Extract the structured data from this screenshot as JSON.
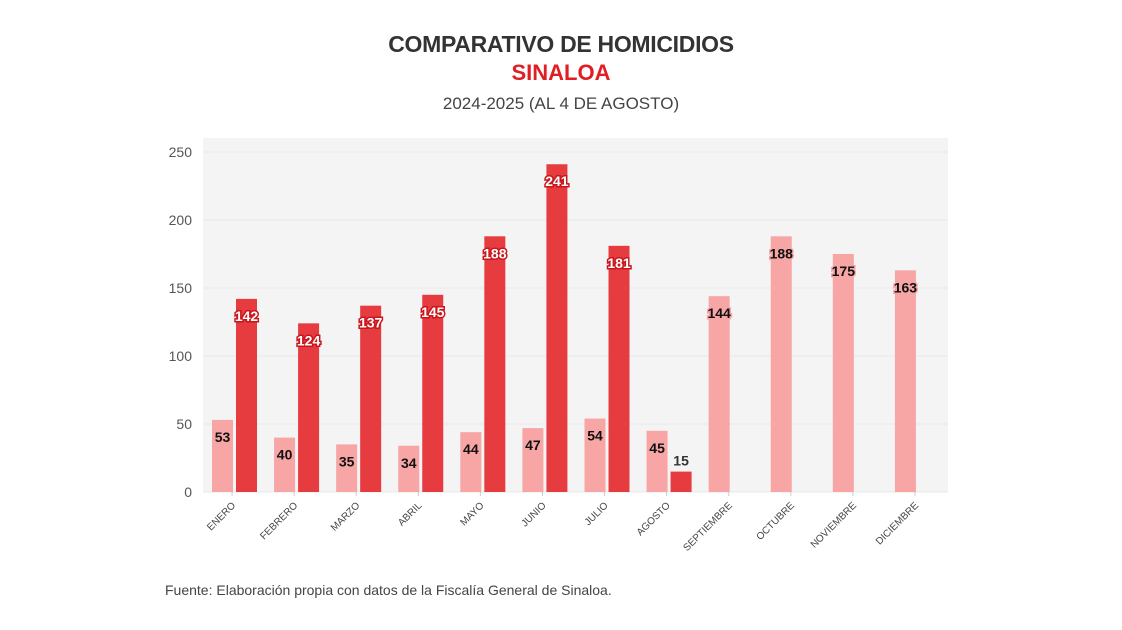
{
  "header": {
    "title": "COMPARATIVO DE HOMICIDIOS",
    "subtitle": "SINALOA",
    "period": "2024-2025 (AL 4 DE AGOSTO)"
  },
  "footer": {
    "source": "Fuente: Elaboración propia con datos de la Fiscalía General de Sinaloa."
  },
  "colors": {
    "series_2024": "#f7a5a5",
    "series_2025": "#e63b3f",
    "subtitle": "#e01e24",
    "plot_bg": "#f4f4f4"
  },
  "chart_data": {
    "type": "bar",
    "title": "COMPARATIVO DE HOMICIDIOS",
    "subtitle": "SINALOA",
    "xlabel": "",
    "ylabel": "",
    "ylim": [
      0,
      250
    ],
    "yticks": [
      0,
      50,
      100,
      150,
      200,
      250
    ],
    "grid": true,
    "legend": "none",
    "categories": [
      "ENERO",
      "FEBRERO",
      "MARZO",
      "ABRIL",
      "MAYO",
      "JUNIO",
      "JULIO",
      "AGOSTO",
      "SEPTIEMBRE",
      "OCTUBRE",
      "NOVIEMBRE",
      "DICIEMBRE"
    ],
    "series": [
      {
        "name": "2024",
        "values": [
          53,
          40,
          35,
          34,
          44,
          47,
          54,
          45,
          144,
          188,
          175,
          163
        ]
      },
      {
        "name": "2025",
        "values": [
          142,
          124,
          137,
          145,
          188,
          241,
          181,
          15,
          null,
          null,
          null,
          null
        ]
      }
    ]
  }
}
